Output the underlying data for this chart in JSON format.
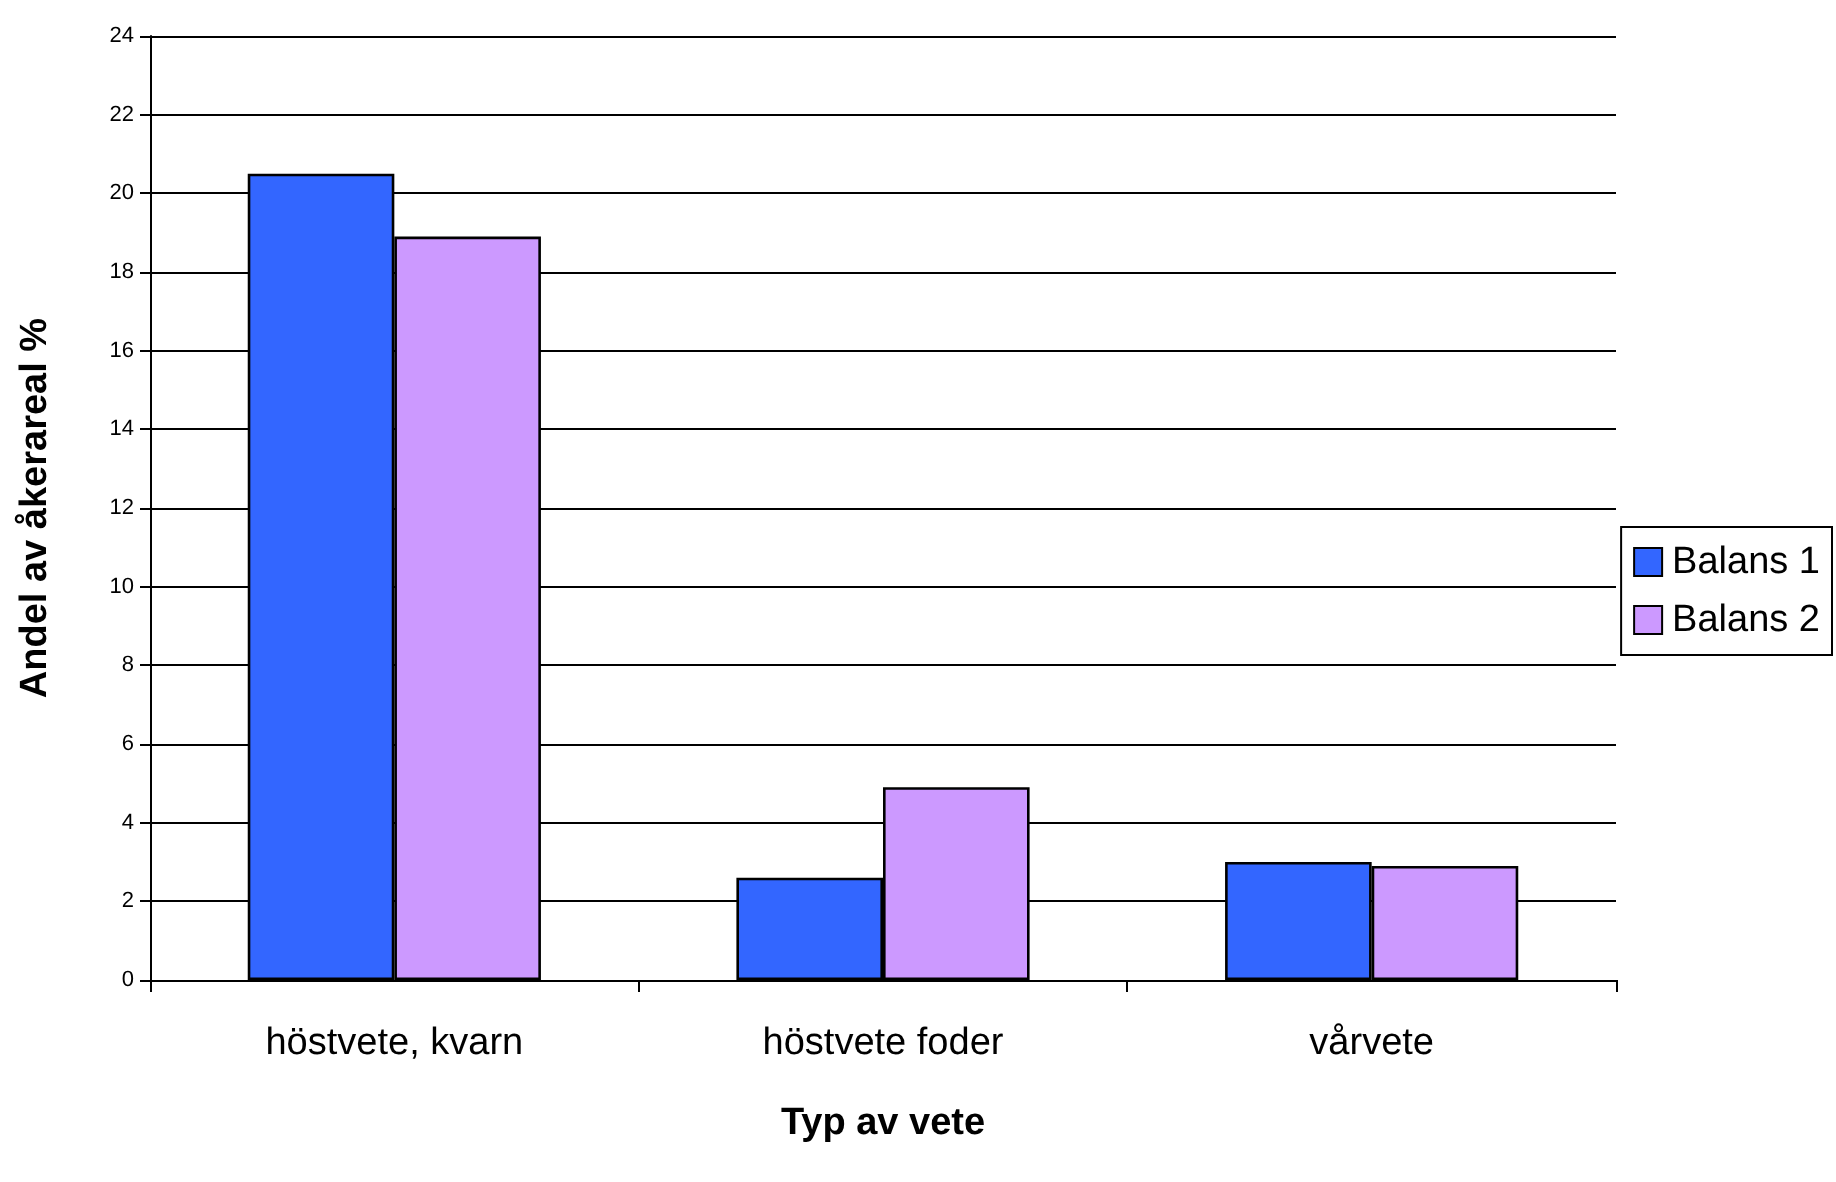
{
  "chart_data": {
    "type": "bar",
    "xlabel": "Typ av vete",
    "ylabel": "Andel av åkerareal %",
    "categories": [
      "höstvete, kvarn",
      "höstvete foder",
      "vårvete"
    ],
    "series": [
      {
        "name": "Balans 1",
        "color": "#3366ff",
        "values": [
          20.5,
          2.6,
          3.0
        ]
      },
      {
        "name": "Balans 2",
        "color": "#cc99ff",
        "values": [
          18.9,
          4.9,
          2.9
        ]
      }
    ],
    "ylim": [
      0,
      24
    ],
    "yticks": [
      0,
      2,
      4,
      6,
      8,
      10,
      12,
      14,
      16,
      18,
      20,
      22,
      24
    ],
    "grid": "y",
    "legend": "right"
  }
}
